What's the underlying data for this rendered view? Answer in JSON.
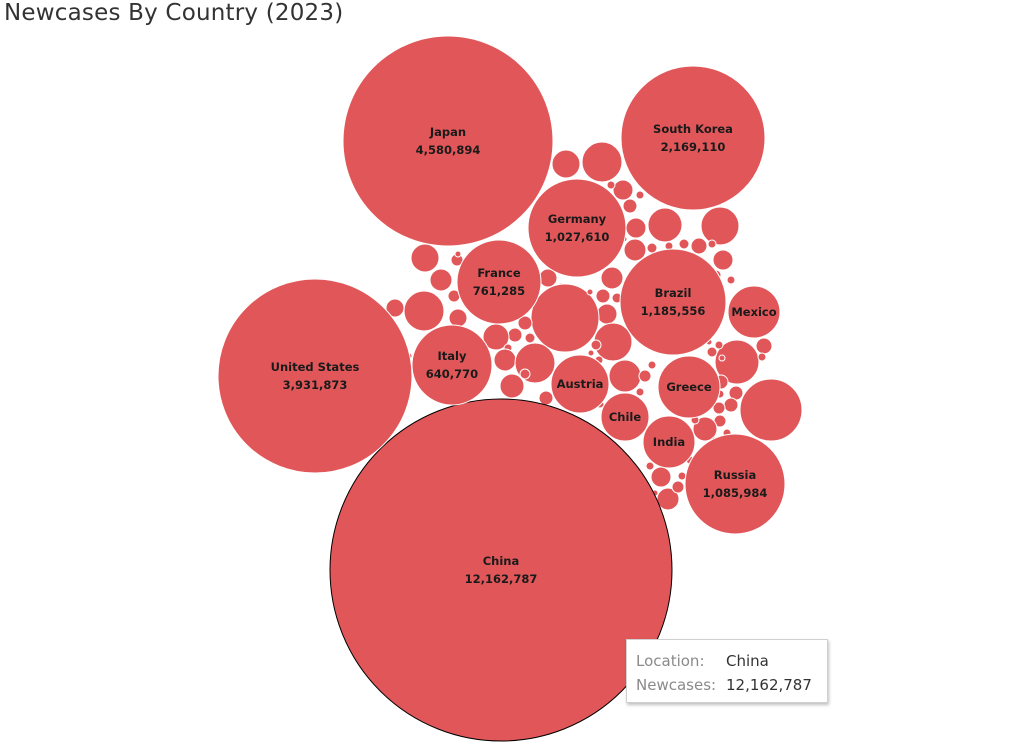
{
  "chart_data": {
    "type": "bubble",
    "title": "Newcases By Country (2023)",
    "color": "#e15759",
    "measure": "Newcases",
    "dimension": "Location",
    "series": [
      {
        "name": "China",
        "value": 12162787,
        "value_label": "12,162,787"
      },
      {
        "name": "Japan",
        "value": 4580894,
        "value_label": "4,580,894"
      },
      {
        "name": "United States",
        "value": 3931873,
        "value_label": "3,931,873"
      },
      {
        "name": "South Korea",
        "value": 2169110,
        "value_label": "2,169,110"
      },
      {
        "name": "Brazil",
        "value": 1185556,
        "value_label": "1,185,556"
      },
      {
        "name": "Russia",
        "value": 1085984,
        "value_label": "1,085,984"
      },
      {
        "name": "Germany",
        "value": 1027610,
        "value_label": "1,027,610"
      },
      {
        "name": "France",
        "value": 761285,
        "value_label": "761,285"
      },
      {
        "name": "Italy",
        "value": 640770,
        "value_label": "640,770"
      },
      {
        "name": "Austria",
        "value": null,
        "value_label": ""
      },
      {
        "name": "Greece",
        "value": null,
        "value_label": ""
      },
      {
        "name": "Mexico",
        "value": null,
        "value_label": ""
      },
      {
        "name": "India",
        "value": null,
        "value_label": ""
      },
      {
        "name": "Chile",
        "value": null,
        "value_label": ""
      }
    ],
    "selected": "China"
  },
  "tooltip": {
    "location_key": "Location:",
    "location_value": "China",
    "newcases_key": "Newcases:",
    "newcases_value": "12,162,787"
  }
}
